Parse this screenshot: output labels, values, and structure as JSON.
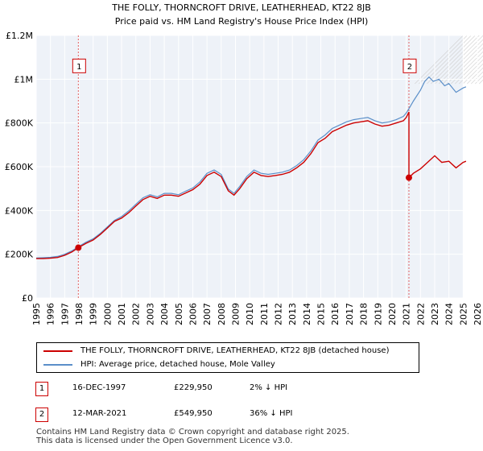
{
  "chart_data": {
    "type": "line",
    "title": "THE FOLLY, THORNCROFT DRIVE, LEATHERHEAD, KT22 8JB",
    "subtitle": "Price paid vs. HM Land Registry's House Price Index (HPI)",
    "xlim": [
      1995,
      2026
    ],
    "ylim": [
      0,
      1200000
    ],
    "x_ticks": [
      "1995",
      "1996",
      "1997",
      "1998",
      "1999",
      "2000",
      "2001",
      "2002",
      "2003",
      "2004",
      "2005",
      "2006",
      "2007",
      "2008",
      "2009",
      "2010",
      "2011",
      "2012",
      "2013",
      "2014",
      "2015",
      "2016",
      "2017",
      "2018",
      "2019",
      "2020",
      "2021",
      "2022",
      "2023",
      "2024",
      "2025",
      "2026"
    ],
    "y_ticks": [
      {
        "value": 0,
        "label": "£0"
      },
      {
        "value": 200000,
        "label": "£200K"
      },
      {
        "value": 400000,
        "label": "£400K"
      },
      {
        "value": 600000,
        "label": "£600K"
      },
      {
        "value": 800000,
        "label": "£800K"
      },
      {
        "value": 1000000,
        "label": "£1M"
      },
      {
        "value": 1200000,
        "label": "£1.2M"
      }
    ],
    "grid": true,
    "future_shading_from": 2025.0,
    "series": [
      {
        "name": "THE FOLLY, THORNCROFT DRIVE, LEATHERHEAD, KT22 8JB (detached house)",
        "color": "#cc0000",
        "x": [
          1995.0,
          1995.5,
          1996.0,
          1996.5,
          1997.0,
          1997.5,
          1997.96,
          1998.5,
          1999.0,
          1999.5,
          2000.0,
          2000.5,
          2001.0,
          2001.5,
          2002.0,
          2002.5,
          2003.0,
          2003.5,
          2004.0,
          2004.5,
          2005.0,
          2005.5,
          2006.0,
          2006.5,
          2007.0,
          2007.5,
          2008.0,
          2008.5,
          2008.9,
          2009.3,
          2009.8,
          2010.3,
          2010.8,
          2011.3,
          2011.8,
          2012.3,
          2012.8,
          2013.3,
          2013.8,
          2014.3,
          2014.8,
          2015.3,
          2015.8,
          2016.3,
          2016.8,
          2017.3,
          2017.8,
          2018.3,
          2018.8,
          2019.3,
          2019.8,
          2020.3,
          2020.8,
          2021.0,
          2021.19,
          2021.19,
          2021.5,
          2022.0,
          2022.5,
          2023.0,
          2023.5,
          2024.0,
          2024.5,
          2025.0,
          2025.2
        ],
        "y": [
          180000,
          180000,
          182000,
          185000,
          195000,
          210000,
          229950,
          250000,
          265000,
          290000,
          320000,
          350000,
          365000,
          390000,
          420000,
          450000,
          465000,
          455000,
          470000,
          470000,
          465000,
          480000,
          495000,
          520000,
          560000,
          575000,
          555000,
          490000,
          470000,
          500000,
          545000,
          575000,
          560000,
          555000,
          560000,
          565000,
          575000,
          595000,
          620000,
          660000,
          710000,
          730000,
          760000,
          775000,
          790000,
          800000,
          805000,
          810000,
          795000,
          785000,
          790000,
          800000,
          810000,
          825000,
          850000,
          549950,
          570000,
          590000,
          620000,
          650000,
          620000,
          625000,
          595000,
          620000,
          625000
        ]
      },
      {
        "name": "HPI: Average price, detached house, Mole Valley",
        "color": "#5b8fc9",
        "x": [
          1995.0,
          1995.5,
          1996.0,
          1996.5,
          1997.0,
          1997.5,
          1997.96,
          1998.5,
          1999.0,
          1999.5,
          2000.0,
          2000.5,
          2001.0,
          2001.5,
          2002.0,
          2002.5,
          2003.0,
          2003.5,
          2004.0,
          2004.5,
          2005.0,
          2005.5,
          2006.0,
          2006.5,
          2007.0,
          2007.5,
          2008.0,
          2008.5,
          2008.9,
          2009.3,
          2009.8,
          2010.3,
          2010.8,
          2011.3,
          2011.8,
          2012.3,
          2012.8,
          2013.3,
          2013.8,
          2014.3,
          2014.8,
          2015.3,
          2015.8,
          2016.3,
          2016.8,
          2017.3,
          2017.8,
          2018.3,
          2018.8,
          2019.3,
          2019.8,
          2020.3,
          2020.8,
          2021.0,
          2021.19,
          2021.5,
          2022.0,
          2022.3,
          2022.6,
          2022.9,
          2023.3,
          2023.7,
          2024.0,
          2024.5,
          2025.0,
          2025.2
        ],
        "y": [
          183000,
          184000,
          186000,
          190000,
          200000,
          215000,
          234000,
          255000,
          270000,
          295000,
          325000,
          355000,
          372000,
          398000,
          428000,
          458000,
          472000,
          462000,
          478000,
          478000,
          472000,
          488000,
          503000,
          530000,
          570000,
          585000,
          565000,
          498000,
          478000,
          510000,
          555000,
          585000,
          570000,
          565000,
          570000,
          575000,
          585000,
          605000,
          632000,
          672000,
          722000,
          745000,
          775000,
          790000,
          805000,
          815000,
          820000,
          825000,
          810000,
          800000,
          805000,
          815000,
          830000,
          845000,
          865000,
          900000,
          950000,
          990000,
          1010000,
          990000,
          1000000,
          970000,
          980000,
          940000,
          960000,
          965000
        ]
      }
    ],
    "annotations": [
      {
        "id": "1",
        "x": 1997.96,
        "y": 229950,
        "box_price": 1000000
      },
      {
        "id": "2",
        "x": 2021.19,
        "y": 549950,
        "box_price": 1000000
      }
    ]
  },
  "legend": {
    "items": [
      {
        "label": "THE FOLLY, THORNCROFT DRIVE, LEATHERHEAD, KT22 8JB (detached house)",
        "color": "#cc0000"
      },
      {
        "label": "HPI: Average price, detached house, Mole Valley",
        "color": "#5b8fc9"
      }
    ]
  },
  "transactions": [
    {
      "id": "1",
      "date": "16-DEC-1997",
      "price": "£229,950",
      "hpi": "2% ↓ HPI"
    },
    {
      "id": "2",
      "date": "12-MAR-2021",
      "price": "£549,950",
      "hpi": "36% ↓ HPI"
    }
  ],
  "footer": {
    "line1": "Contains HM Land Registry data © Crown copyright and database right 2025.",
    "line2": "This data is licensed under the Open Government Licence v3.0."
  }
}
